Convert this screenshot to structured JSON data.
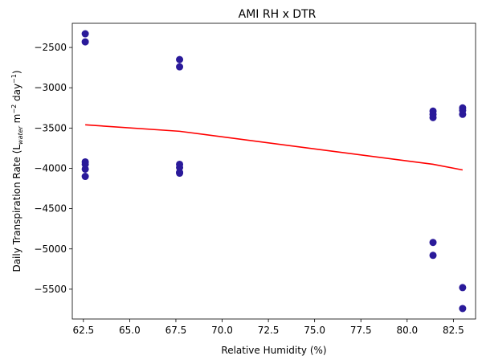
{
  "chart_data": {
    "type": "scatter",
    "title": "AMI RH x DTR",
    "xlabel": "Relative Humidity (%)",
    "ylabel": {
      "prefix": "Daily Transpiration Rate (L",
      "subscript": "water",
      "mid": " m",
      "sup1": "−2",
      "mid2": " day",
      "sup2": "−1",
      "suffix": ")"
    },
    "xlim": [
      61.9,
      83.7
    ],
    "ylim": [
      -5870,
      -2200
    ],
    "xticks": [
      62.5,
      65.0,
      67.5,
      70.0,
      72.5,
      75.0,
      77.5,
      80.0,
      82.5
    ],
    "xtick_labels": [
      "62.5",
      "65.0",
      "67.5",
      "70.0",
      "72.5",
      "75.0",
      "77.5",
      "80.0",
      "82.5"
    ],
    "yticks": [
      -5500,
      -5000,
      -4500,
      -4000,
      -3500,
      -3000,
      -2500
    ],
    "ytick_labels": [
      "−5500",
      "−5000",
      "−4500",
      "−4000",
      "−3500",
      "−3000",
      "−2500"
    ],
    "grid": false,
    "series": [
      {
        "kind": "scatter",
        "color": "#2a1a9a",
        "points": [
          {
            "x": 62.6,
            "y": -2330
          },
          {
            "x": 62.6,
            "y": -2430
          },
          {
            "x": 62.6,
            "y": -3920
          },
          {
            "x": 62.6,
            "y": -3950
          },
          {
            "x": 62.6,
            "y": -4010
          },
          {
            "x": 62.6,
            "y": -4100
          },
          {
            "x": 67.7,
            "y": -2650
          },
          {
            "x": 67.7,
            "y": -2740
          },
          {
            "x": 67.7,
            "y": -3950
          },
          {
            "x": 67.7,
            "y": -3990
          },
          {
            "x": 67.7,
            "y": -4050
          },
          {
            "x": 67.7,
            "y": -4060
          },
          {
            "x": 81.4,
            "y": -3290
          },
          {
            "x": 81.4,
            "y": -3330
          },
          {
            "x": 81.4,
            "y": -3370
          },
          {
            "x": 81.4,
            "y": -4920
          },
          {
            "x": 81.4,
            "y": -5080
          },
          {
            "x": 83.0,
            "y": -3250
          },
          {
            "x": 83.0,
            "y": -3280
          },
          {
            "x": 83.0,
            "y": -3330
          },
          {
            "x": 83.0,
            "y": -5480
          },
          {
            "x": 83.0,
            "y": -5740
          }
        ]
      },
      {
        "kind": "line",
        "color": "#ff0000",
        "points": [
          {
            "x": 62.6,
            "y": -3460
          },
          {
            "x": 67.7,
            "y": -3540
          },
          {
            "x": 81.4,
            "y": -3950
          },
          {
            "x": 83.0,
            "y": -4020
          }
        ]
      }
    ]
  }
}
